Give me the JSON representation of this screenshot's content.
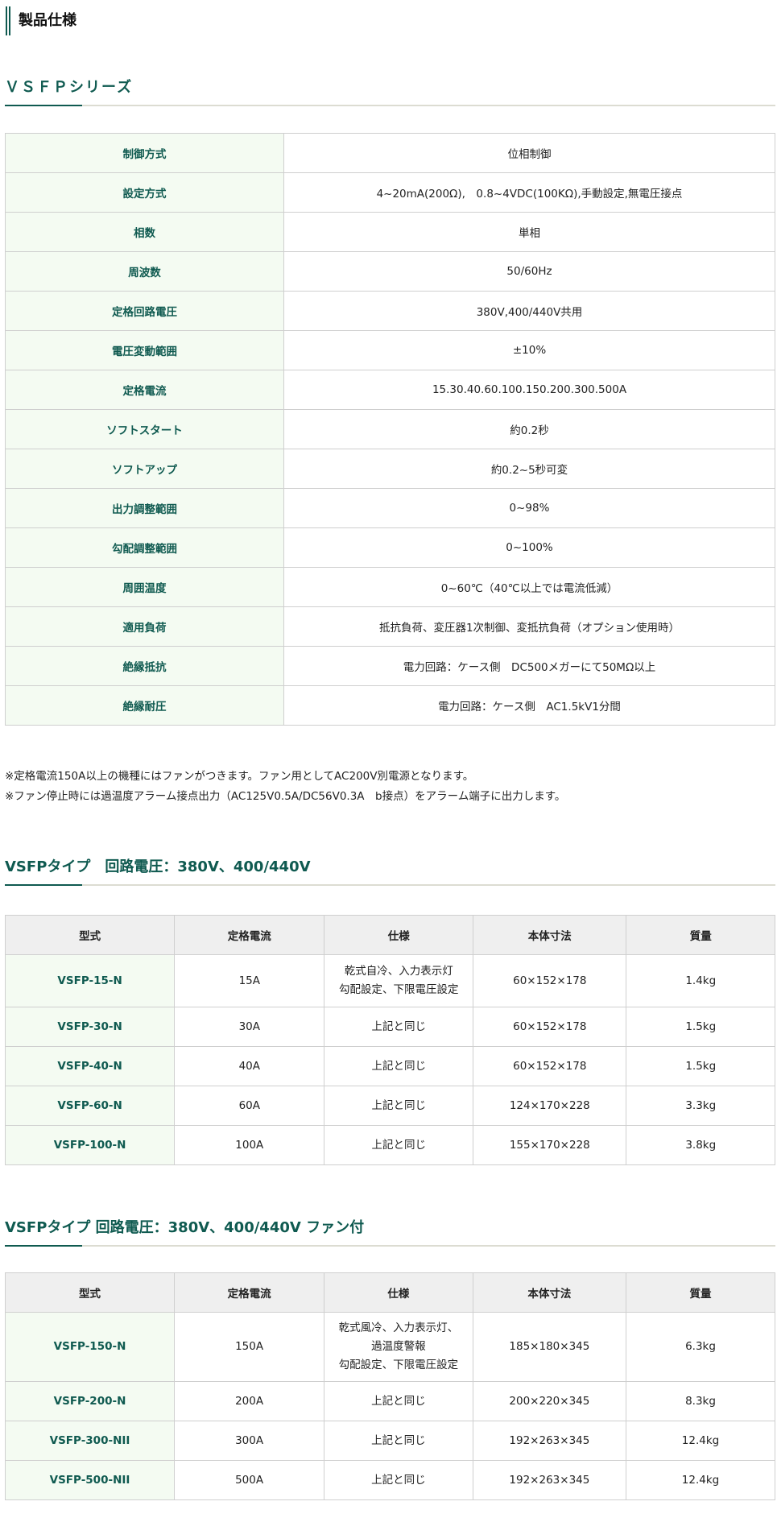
{
  "page_title": "製品仕様",
  "series_heading": "ＶＳＦＰシリーズ",
  "spec_rows": [
    {
      "k": "制御方式",
      "v": "位相制御"
    },
    {
      "k": "設定方式",
      "v": "4~20mA(200Ω),　0.8~4VDC(100KΩ),手動設定,無電圧接点"
    },
    {
      "k": "相数",
      "v": "単相"
    },
    {
      "k": "周波数",
      "v": "50/60Hz"
    },
    {
      "k": "定格回路電圧",
      "v": "380V,400/440V共用"
    },
    {
      "k": "電圧変動範囲",
      "v": "±10%"
    },
    {
      "k": "定格電流",
      "v": "15.30.40.60.100.150.200.300.500A"
    },
    {
      "k": "ソフトスタート",
      "v": "約0.2秒"
    },
    {
      "k": "ソフトアップ",
      "v": "約0.2~5秒可変"
    },
    {
      "k": "出力調整範囲",
      "v": "0~98%"
    },
    {
      "k": "勾配調整範囲",
      "v": "0~100%"
    },
    {
      "k": "周囲温度",
      "v": "0~60℃（40℃以上では電流低減）"
    },
    {
      "k": "適用負荷",
      "v": "抵抗負荷、変圧器1次制御、変抵抗負荷（オプション使用時）"
    },
    {
      "k": "絶縁抵抗",
      "v": "電力回路：ケース側　DC500メガーにて50MΩ以上"
    },
    {
      "k": "絶縁耐圧",
      "v": "電力回路：ケース側　AC1.5kV1分間"
    }
  ],
  "notes": [
    "※定格電流150A以上の機種にはファンがつきます。ファン用としてAC200V別電源となります。",
    "※ファン停止時には過温度アラーム接点出力（AC125V0.5A/DC56V0.3A　b接点）をアラーム端子に出力します。"
  ],
  "table_headers": [
    "型式",
    "定格電流",
    "仕様",
    "本体寸法",
    "質量"
  ],
  "section1": {
    "heading": "VSFPタイプ　回路電圧：380V、400/440V",
    "rows": [
      [
        "VSFP-15-N",
        "15A",
        "乾式自冷、入力表示灯\n勾配設定、下限電圧設定",
        "60×152×178",
        "1.4kg"
      ],
      [
        "VSFP-30-N",
        "30A",
        "上記と同じ",
        "60×152×178",
        "1.5kg"
      ],
      [
        "VSFP-40-N",
        "40A",
        "上記と同じ",
        "60×152×178",
        "1.5kg"
      ],
      [
        "VSFP-60-N",
        "60A",
        "上記と同じ",
        "124×170×228",
        "3.3kg"
      ],
      [
        "VSFP-100-N",
        "100A",
        "上記と同じ",
        "155×170×228",
        "3.8kg"
      ]
    ]
  },
  "section2": {
    "heading": "VSFPタイプ 回路電圧：380V、400/440V ファン付",
    "rows": [
      [
        "VSFP-150-N",
        "150A",
        "乾式風冷、入力表示灯、\n過温度警報\n勾配設定、下限電圧設定",
        "185×180×345",
        "6.3kg"
      ],
      [
        "VSFP-200-N",
        "200A",
        "上記と同じ",
        "200×220×345",
        "8.3kg"
      ],
      [
        "VSFP-300-NII",
        "300A",
        "上記と同じ",
        "192×263×345",
        "12.4kg"
      ],
      [
        "VSFP-500-NII",
        "500A",
        "上記と同じ",
        "192×263×345",
        "12.4kg"
      ]
    ]
  },
  "colors": {
    "accent": "#0f5a50",
    "key_bg": "#f4fbf2",
    "header_bg": "#efefef"
  }
}
